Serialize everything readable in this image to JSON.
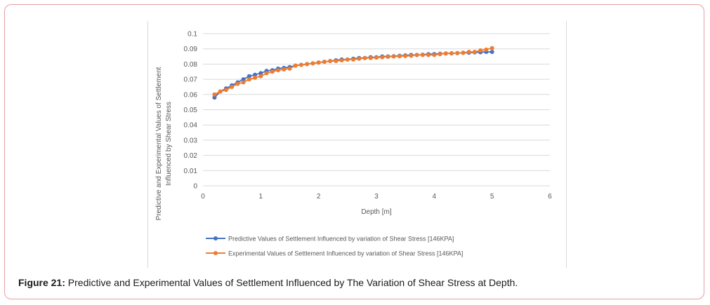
{
  "caption": {
    "label": "Figure 21:",
    "text": " Predictive and Experimental Values of Settlement Influenced by The Variation of Shear Stress at Depth."
  },
  "chart_data": {
    "type": "line",
    "xlabel": "Depth [m]",
    "ylabel_lines": [
      "Predictive and Experimental Values of Settlement",
      "Influenced by Shear Stress"
    ],
    "xlim": [
      0,
      6
    ],
    "ylim": [
      0,
      0.1
    ],
    "x_ticks": [
      "0",
      "1",
      "2",
      "3",
      "4",
      "5",
      "6"
    ],
    "y_ticks": [
      "0",
      "0.01",
      "0.02",
      "0.03",
      "0.04",
      "0.05",
      "0.06",
      "0.07",
      "0.08",
      "0.09",
      "0.1"
    ],
    "grid": "horizontal",
    "legend_position": "bottom",
    "x": [
      0.2,
      0.3,
      0.4,
      0.5,
      0.6,
      0.7,
      0.8,
      0.9,
      1.0,
      1.1,
      1.2,
      1.3,
      1.4,
      1.5,
      1.6,
      1.7,
      1.8,
      1.9,
      2.0,
      2.1,
      2.2,
      2.3,
      2.4,
      2.5,
      2.6,
      2.7,
      2.8,
      2.9,
      3.0,
      3.1,
      3.2,
      3.3,
      3.4,
      3.5,
      3.6,
      3.7,
      3.8,
      3.9,
      4.0,
      4.1,
      4.2,
      4.3,
      4.4,
      4.5,
      4.6,
      4.7,
      4.8,
      4.9,
      5.0
    ],
    "series": [
      {
        "name": "Predictive Values of Settlement Influenced by variation of Shear Stress [146KPA]",
        "color": "#4472c4",
        "values": [
          0.058,
          0.062,
          0.064,
          0.066,
          0.068,
          0.07,
          0.072,
          0.073,
          0.074,
          0.0755,
          0.076,
          0.077,
          0.0775,
          0.078,
          0.079,
          0.0795,
          0.08,
          0.0805,
          0.081,
          0.0815,
          0.082,
          0.0825,
          0.083,
          0.083,
          0.0835,
          0.084,
          0.084,
          0.0845,
          0.0845,
          0.085,
          0.085,
          0.0852,
          0.0855,
          0.0857,
          0.086,
          0.086,
          0.0862,
          0.0865,
          0.0866,
          0.0868,
          0.087,
          0.0871,
          0.0872,
          0.0874,
          0.0875,
          0.0877,
          0.0878,
          0.088,
          0.088
        ]
      },
      {
        "name": "Experimental Values of Settlement Influenced by variation of Shear Stress [146KPA]",
        "color": "#ed7d31",
        "values": [
          0.06,
          0.062,
          0.063,
          0.065,
          0.067,
          0.068,
          0.07,
          0.071,
          0.072,
          0.074,
          0.075,
          0.076,
          0.0765,
          0.077,
          0.079,
          0.0795,
          0.08,
          0.0805,
          0.081,
          0.0815,
          0.082,
          0.082,
          0.0825,
          0.083,
          0.083,
          0.0835,
          0.084,
          0.084,
          0.0843,
          0.0845,
          0.0848,
          0.085,
          0.0852,
          0.0853,
          0.0855,
          0.086,
          0.086,
          0.086,
          0.086,
          0.0865,
          0.087,
          0.087,
          0.0872,
          0.0875,
          0.088,
          0.088,
          0.089,
          0.0895,
          0.0905
        ]
      }
    ]
  }
}
